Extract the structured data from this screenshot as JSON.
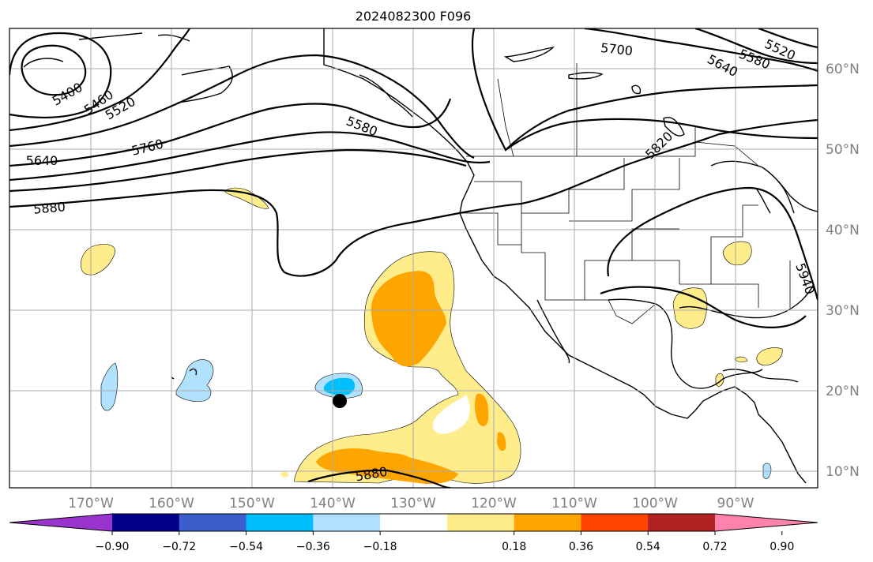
{
  "title": "2024082300 F096",
  "map": {
    "lon_labels": [
      "170°W",
      "160°W",
      "150°W",
      "140°W",
      "130°W",
      "120°W",
      "110°W",
      "100°W",
      "90°W"
    ],
    "lat_labels": [
      "60°N",
      "50°N",
      "40°N",
      "30°N",
      "20°N",
      "10°N"
    ],
    "contour_labels": [
      "5400",
      "5460",
      "5520",
      "5580",
      "5640",
      "5700",
      "5760",
      "5820",
      "5880",
      "5940",
      "5520",
      "5580",
      "5640",
      "5880"
    ],
    "marker": "storm-center-dot"
  },
  "colorbar": {
    "tick_labels": [
      "−0.90",
      "−0.72",
      "−0.54",
      "−0.36",
      "−0.18",
      "0.18",
      "0.36",
      "0.54",
      "0.72",
      "0.90"
    ],
    "colors": [
      "#9a32cd",
      "#00008b",
      "#3a5fcd",
      "#00bfff",
      "#b0e2ff",
      "#ffffff",
      "#ffec8b",
      "#ffa500",
      "#ff4500",
      "#b22222",
      "#ff82ab"
    ]
  }
}
